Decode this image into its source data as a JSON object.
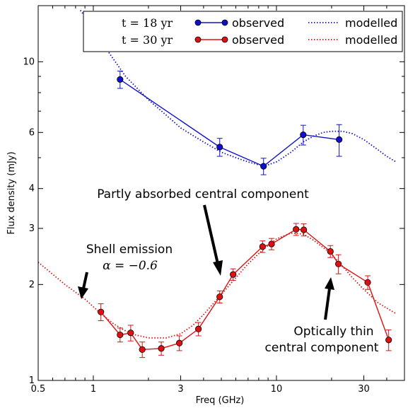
{
  "chart_data": {
    "type": "line",
    "xlabel": "Freq (GHz)",
    "ylabel": "Flux density (mJy)",
    "xscale": "log",
    "yscale": "log",
    "xlim": [
      0.5,
      50
    ],
    "ylim": [
      1,
      15
    ],
    "x_ticks": [
      0.5,
      1,
      3,
      10,
      30
    ],
    "x_tick_labels": [
      "0.5",
      "1",
      "3",
      "10",
      "30"
    ],
    "y_ticks": [
      1,
      2,
      3,
      4,
      6,
      10
    ],
    "y_tick_labels": [
      "1",
      "2",
      "3",
      "4",
      "6",
      "10"
    ],
    "legend_position": "top-right",
    "legend": {
      "rows": [
        {
          "epoch": "t = 18 yr",
          "observed_label": "observed",
          "model_label": "modelled",
          "color": "#1010cc"
        },
        {
          "epoch": "t = 30 yr",
          "observed_label": "observed",
          "model_label": "modelled",
          "color": "#dd1111"
        }
      ]
    },
    "series": [
      {
        "name": "observed",
        "epoch": "t = 18 yr",
        "color": "#1010cc",
        "style": "line+markers",
        "x": [
          1.4,
          4.9,
          8.5,
          14.0,
          22.0
        ],
        "y": [
          8.8,
          5.4,
          4.7,
          5.9,
          5.7
        ],
        "err": [
          0.55,
          0.35,
          0.28,
          0.42,
          0.65
        ]
      },
      {
        "name": "modelled",
        "epoch": "t = 18 yr",
        "color": "#1010cc",
        "style": "dotted",
        "x": [
          0.85,
          1.0,
          1.2,
          1.5,
          2.0,
          2.5,
          3.0,
          4.0,
          5.0,
          6.0,
          7.0,
          8.0,
          9.0,
          10.0,
          12.0,
          14.0,
          16.0,
          18.0,
          20.0,
          23.0,
          26.0,
          30.0,
          35.0,
          40.0,
          45.0
        ],
        "y": [
          14.5,
          12.8,
          10.8,
          9.0,
          7.6,
          6.8,
          6.2,
          5.6,
          5.2,
          5.0,
          4.85,
          4.75,
          4.75,
          4.85,
          5.2,
          5.6,
          5.85,
          6.0,
          6.05,
          6.05,
          5.95,
          5.7,
          5.35,
          5.05,
          4.85
        ]
      },
      {
        "name": "observed",
        "epoch": "t = 30 yr",
        "color": "#dd1111",
        "style": "line+markers",
        "x": [
          1.1,
          1.4,
          1.6,
          1.85,
          2.35,
          2.95,
          3.75,
          4.9,
          5.8,
          8.4,
          9.4,
          12.8,
          14.1,
          19.7,
          21.8,
          31.5,
          41.0
        ],
        "y": [
          1.64,
          1.39,
          1.41,
          1.25,
          1.26,
          1.31,
          1.45,
          1.83,
          2.15,
          2.63,
          2.68,
          2.98,
          2.97,
          2.54,
          2.32,
          2.03,
          1.34
        ],
        "err": [
          0.1,
          0.07,
          0.08,
          0.07,
          0.06,
          0.07,
          0.07,
          0.08,
          0.09,
          0.11,
          0.11,
          0.13,
          0.13,
          0.11,
          0.16,
          0.1,
          0.1
        ]
      },
      {
        "name": "modelled",
        "epoch": "t = 30 yr",
        "color": "#dd1111",
        "style": "dotted",
        "x": [
          0.5,
          0.7,
          0.9,
          1.1,
          1.3,
          1.6,
          2.0,
          2.5,
          3.0,
          3.5,
          4.0,
          5.0,
          6.0,
          7.0,
          8.0,
          9.0,
          10.0,
          12.0,
          14.0,
          16.0,
          19.0,
          22.0,
          26.0,
          30.0,
          36.0,
          45.0
        ],
        "y": [
          2.35,
          2.0,
          1.8,
          1.62,
          1.5,
          1.4,
          1.36,
          1.36,
          1.4,
          1.49,
          1.61,
          1.86,
          2.1,
          2.32,
          2.5,
          2.65,
          2.78,
          2.9,
          2.88,
          2.75,
          2.55,
          2.35,
          2.1,
          1.93,
          1.75,
          1.62
        ]
      }
    ],
    "annotations": {
      "partly": "Partly absorbed central component",
      "shell": "Shell emission",
      "alpha": "α = −0.6",
      "thin_line1": "Optically thin",
      "thin_line2": "central component"
    }
  }
}
